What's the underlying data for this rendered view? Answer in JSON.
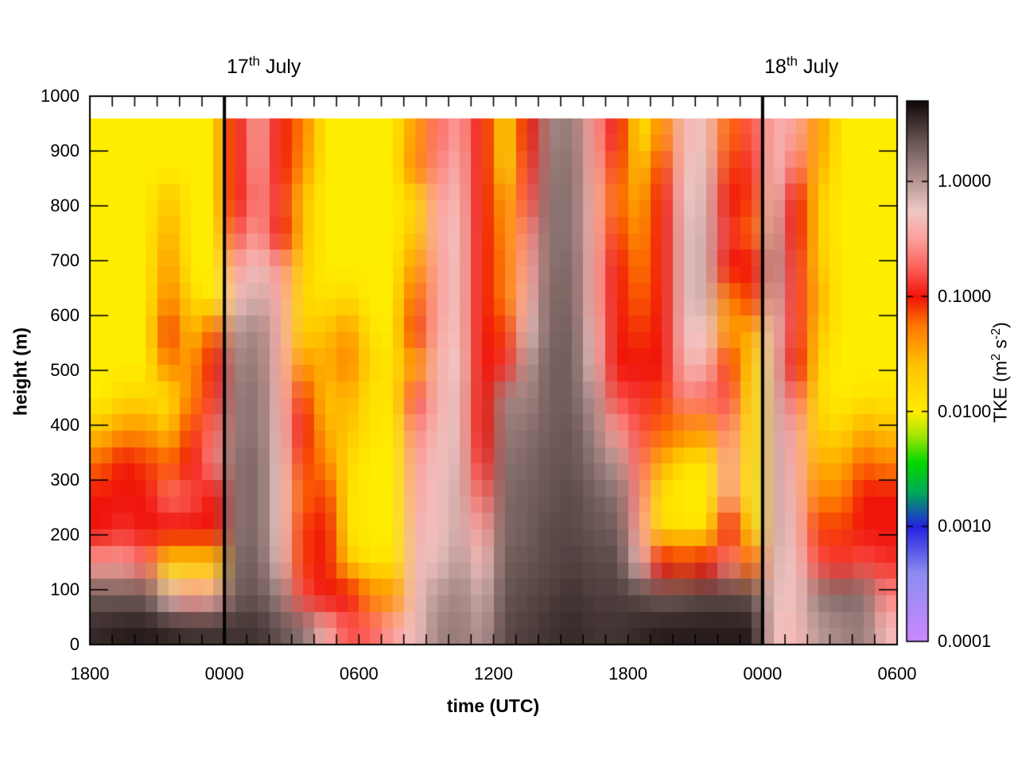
{
  "titles": {
    "left": {
      "num": "17",
      "sup": "th",
      "rest": " July"
    },
    "right": {
      "num": "18",
      "sup": "th",
      "rest": " July"
    }
  },
  "axes": {
    "x_label": "time (UTC)",
    "y_label": "height (m)",
    "x_major_hours": [
      0,
      6,
      12,
      18,
      24,
      30,
      36
    ],
    "x_major_labels": [
      "1800",
      "0000",
      "0600",
      "1200",
      "1800",
      "0000",
      "0600"
    ],
    "x_total_hours": 36,
    "y_ticks": [
      0,
      100,
      200,
      300,
      400,
      500,
      600,
      700,
      800,
      900,
      1000
    ],
    "y_max_m": 1000
  },
  "colorbar": {
    "label_parts": {
      "p1": "TKE (m",
      "s1": "2",
      "p2": " s",
      "s2": "-2",
      "p3": ")"
    },
    "tick_labels": [
      "1.0000",
      "0.1000",
      "0.0100",
      "0.0010",
      "0.0001"
    ],
    "tick_log_values": [
      0,
      -1,
      -2,
      -3,
      -4
    ],
    "log_min": -4.0,
    "log_max": 0.7,
    "stops": [
      [
        -4.0,
        204,
        136,
        255
      ],
      [
        -3.4,
        140,
        140,
        240
      ],
      [
        -3.0,
        35,
        35,
        225
      ],
      [
        -2.7,
        0,
        170,
        90
      ],
      [
        -2.45,
        0,
        215,
        0
      ],
      [
        -2.2,
        170,
        230,
        0
      ],
      [
        -2.0,
        255,
        237,
        0
      ],
      [
        -1.6,
        255,
        196,
        0
      ],
      [
        -1.25,
        255,
        120,
        0
      ],
      [
        -1.0,
        240,
        20,
        10
      ],
      [
        -0.75,
        252,
        96,
        90
      ],
      [
        -0.5,
        252,
        160,
        155
      ],
      [
        -0.25,
        240,
        200,
        198
      ],
      [
        0.0,
        185,
        152,
        150
      ],
      [
        0.35,
        105,
        85,
        83
      ],
      [
        0.7,
        15,
        8,
        8
      ]
    ]
  },
  "chart_data": {
    "type": "heatmap",
    "title": "",
    "xlabel": "time (UTC)",
    "ylabel": "height (m)",
    "x_start_label": "1800",
    "x_hours_since_start": [
      0,
      1,
      2,
      3,
      4,
      5,
      6,
      7,
      8,
      9,
      10,
      11,
      12,
      13,
      14,
      15,
      16,
      17,
      18,
      19,
      20,
      21,
      22,
      23,
      24,
      25,
      26,
      27,
      28,
      29,
      30,
      31,
      32,
      33,
      34,
      35
    ],
    "day_boundary_hours": [
      6,
      30
    ],
    "height_step_m": 60,
    "height_data_max_m": 960,
    "value_units": "log10 TKE (m2 s-2)",
    "columns_log10_tke_bottom_to_top": [
      [
        0.55,
        0.3,
        -0.5,
        -1.0,
        -1.0,
        -1.2,
        -1.6,
        -2.0,
        -2.0,
        -2.0,
        -2.0,
        -2.0,
        -2.0,
        -2.0,
        -2.0,
        -2.0
      ],
      [
        0.6,
        0.3,
        -0.5,
        -0.9,
        -1.0,
        -1.0,
        -1.4,
        -1.8,
        -2.0,
        -2.0,
        -2.0,
        -2.0,
        -2.0,
        -2.0,
        -2.0,
        -2.0
      ],
      [
        0.6,
        0.3,
        -0.7,
        -1.0,
        -1.0,
        -1.1,
        -1.4,
        -1.8,
        -2.0,
        -2.0,
        -2.0,
        -2.0,
        -2.0,
        -2.0,
        -2.0,
        -2.0
      ],
      [
        0.55,
        -0.2,
        -1.8,
        -1.0,
        -0.7,
        -1.2,
        -1.6,
        -1.9,
        -1.3,
        -1.1,
        -1.3,
        -1.4,
        -1.5,
        -1.6,
        -2.0,
        -2.0
      ],
      [
        0.5,
        -0.5,
        -1.8,
        -1.0,
        -0.8,
        -1.0,
        -1.1,
        -1.3,
        -1.4,
        -1.6,
        -1.8,
        -2.0,
        -2.0,
        -2.0,
        -2.0,
        -2.0
      ],
      [
        0.5,
        -0.4,
        -1.7,
        -1.0,
        -1.0,
        -0.6,
        -0.7,
        -0.9,
        -1.0,
        -1.2,
        -2.0,
        -2.0,
        -2.0,
        -2.0,
        -2.0,
        -2.0
      ],
      [
        0.5,
        0.3,
        0.25,
        0.2,
        0.2,
        0.2,
        0.15,
        0.15,
        0.1,
        0.0,
        -0.3,
        -0.5,
        -0.8,
        -1.0,
        -1.0,
        -1.0
      ],
      [
        0.5,
        0.35,
        0.3,
        0.25,
        0.25,
        0.25,
        0.2,
        0.2,
        0.15,
        0.1,
        -0.1,
        -0.3,
        -0.5,
        -0.6,
        -0.5,
        -0.45
      ],
      [
        0.35,
        0.1,
        -0.2,
        -0.25,
        -0.25,
        -0.25,
        -0.3,
        -0.35,
        -0.4,
        -0.4,
        -0.45,
        -0.55,
        -1.0,
        -0.9,
        -1.0,
        -1.0
      ],
      [
        0.2,
        -0.8,
        -1.1,
        -1.1,
        -1.2,
        -1.1,
        -1.0,
        -1.1,
        -1.4,
        -1.7,
        -1.8,
        -1.7,
        -1.6,
        -1.6,
        -1.4,
        -1.3
      ],
      [
        -0.4,
        -1.0,
        -1.0,
        -1.0,
        -1.1,
        -1.3,
        -1.5,
        -1.6,
        -1.5,
        -1.6,
        -1.9,
        -2.0,
        -2.0,
        -2.0,
        -2.0,
        -2.0
      ],
      [
        -0.8,
        -1.0,
        -1.6,
        -1.9,
        -1.9,
        -1.8,
        -1.6,
        -1.5,
        -1.3,
        -1.4,
        -1.8,
        -2.0,
        -2.0,
        -2.0,
        -2.0,
        -2.0
      ],
      [
        -0.75,
        -1.3,
        -1.9,
        -2.0,
        -2.0,
        -2.0,
        -1.9,
        -1.9,
        -1.8,
        -1.9,
        -2.0,
        -2.0,
        -2.0,
        -2.0,
        -2.0,
        -2.0
      ],
      [
        -0.5,
        -1.4,
        -1.9,
        -2.0,
        -2.0,
        -2.0,
        -2.0,
        -1.9,
        -1.9,
        -2.0,
        -2.0,
        -2.0,
        -2.0,
        -2.0,
        -2.0,
        -2.0
      ],
      [
        -0.3,
        -0.3,
        -0.35,
        -0.4,
        -0.45,
        -0.5,
        -0.6,
        -0.8,
        -1.4,
        -1.1,
        -1.2,
        -1.4,
        -1.6,
        -1.8,
        -1.3,
        -1.4
      ],
      [
        0.1,
        0.0,
        -0.2,
        -0.3,
        -0.3,
        -0.3,
        -0.35,
        -0.4,
        -0.4,
        -0.45,
        -0.5,
        -0.5,
        -0.45,
        -0.5,
        -0.6,
        -0.7
      ],
      [
        0.15,
        0.1,
        0.0,
        -0.1,
        -0.1,
        -0.15,
        -0.2,
        -0.2,
        -0.25,
        -0.3,
        -0.3,
        -0.3,
        -0.3,
        -0.35,
        -0.4,
        -0.5
      ],
      [
        0.0,
        -0.1,
        -0.3,
        -0.5,
        -0.7,
        -0.9,
        -1.0,
        -1.0,
        -1.0,
        -1.0,
        -1.0,
        -1.0,
        -1.0,
        -1.0,
        -1.0,
        -1.0
      ],
      [
        0.4,
        0.35,
        0.3,
        0.25,
        0.25,
        0.2,
        0.15,
        0.1,
        -0.9,
        -1.1,
        -1.3,
        -1.3,
        -1.4,
        -1.5,
        -1.9,
        -2.0
      ],
      [
        0.45,
        0.4,
        0.35,
        0.3,
        0.3,
        0.25,
        0.2,
        0.1,
        0.0,
        -0.2,
        -0.4,
        -0.5,
        -0.6,
        -0.8,
        -0.9,
        -1.0
      ],
      [
        0.5,
        0.45,
        0.4,
        0.4,
        0.35,
        0.35,
        0.3,
        0.3,
        0.3,
        0.25,
        0.25,
        0.2,
        0.2,
        0.2,
        0.15,
        0.1
      ],
      [
        0.55,
        0.5,
        0.45,
        0.4,
        0.4,
        0.35,
        0.35,
        0.3,
        0.3,
        0.3,
        0.25,
        0.25,
        0.2,
        0.2,
        0.2,
        0.15
      ],
      [
        0.5,
        0.45,
        0.4,
        0.35,
        0.3,
        0.2,
        0.1,
        0.0,
        -0.2,
        -0.3,
        -0.4,
        -0.4,
        -0.4,
        -0.4,
        -0.45,
        -0.5
      ],
      [
        0.5,
        0.45,
        0.4,
        0.3,
        0.2,
        0.0,
        -0.5,
        -0.8,
        -1.0,
        -1.0,
        -1.0,
        -1.0,
        -1.1,
        -1.2,
        -1.1,
        -1.0
      ],
      [
        0.55,
        0.4,
        -0.2,
        -0.5,
        -0.6,
        -0.7,
        -0.8,
        -0.9,
        -1.0,
        -1.1,
        -1.2,
        -1.3,
        -1.4,
        -1.5,
        -1.7,
        -2.0
      ],
      [
        0.6,
        0.3,
        -1.0,
        -1.8,
        -1.9,
        -1.5,
        -1.2,
        -1.1,
        -1.0,
        -1.0,
        -1.0,
        -1.0,
        -1.0,
        -1.0,
        -1.1,
        -1.3
      ],
      [
        0.6,
        0.35,
        -1.1,
        -1.9,
        -2.0,
        -1.9,
        -1.3,
        -0.6,
        -0.4,
        -0.3,
        -0.2,
        -0.2,
        -0.2,
        -0.25,
        -0.3,
        -0.35
      ],
      [
        0.6,
        0.4,
        -1.0,
        -1.9,
        -2.0,
        -1.9,
        -1.4,
        -0.7,
        -0.4,
        -0.25,
        -0.1,
        -0.1,
        -0.1,
        -0.15,
        -0.2,
        -0.3
      ],
      [
        0.6,
        0.4,
        -0.6,
        -1.0,
        -0.55,
        -0.5,
        -0.6,
        -0.8,
        -1.1,
        -1.4,
        -1.3,
        -1.0,
        -0.9,
        -1.0,
        -1.1,
        -1.2
      ],
      [
        0.6,
        0.35,
        -1.2,
        -1.9,
        -2.0,
        -1.9,
        -1.9,
        -1.9,
        -1.8,
        -1.5,
        -1.1,
        -1.0,
        -1.2,
        -1.1,
        -0.9,
        -0.8
      ],
      [
        -0.3,
        -0.2,
        -0.15,
        -0.1,
        -0.1,
        -0.1,
        -0.1,
        -0.1,
        -0.15,
        -0.2,
        -0.1,
        0.0,
        -0.1,
        -0.2,
        -0.3,
        -0.4
      ],
      [
        -0.35,
        -0.3,
        -0.3,
        -0.35,
        -0.4,
        -0.45,
        -0.5,
        -0.7,
        -1.0,
        -0.9,
        -0.9,
        -0.9,
        -1.0,
        -1.0,
        -0.7,
        -0.5
      ],
      [
        0.0,
        0.15,
        -0.8,
        -1.1,
        -1.3,
        -1.5,
        -1.7,
        -1.8,
        -1.8,
        -1.6,
        -1.5,
        -1.6,
        -1.7,
        -1.7,
        -1.5,
        -1.4
      ],
      [
        0.1,
        0.25,
        -0.9,
        -1.1,
        -1.3,
        -1.5,
        -1.8,
        -2.0,
        -2.0,
        -2.0,
        -2.0,
        -2.0,
        -2.0,
        -2.0,
        -2.0,
        -2.0
      ],
      [
        0.15,
        0.2,
        -0.8,
        -1.0,
        -1.0,
        -1.2,
        -1.5,
        -1.9,
        -2.0,
        -2.0,
        -2.0,
        -2.0,
        -2.0,
        -2.0,
        -2.0,
        -2.0
      ],
      [
        -0.35,
        -0.6,
        -0.9,
        -1.0,
        -1.0,
        -1.3,
        -1.6,
        -1.9,
        -2.0,
        -2.0,
        -2.0,
        -2.0,
        -2.0,
        -2.0,
        -2.0,
        -2.0
      ]
    ]
  }
}
